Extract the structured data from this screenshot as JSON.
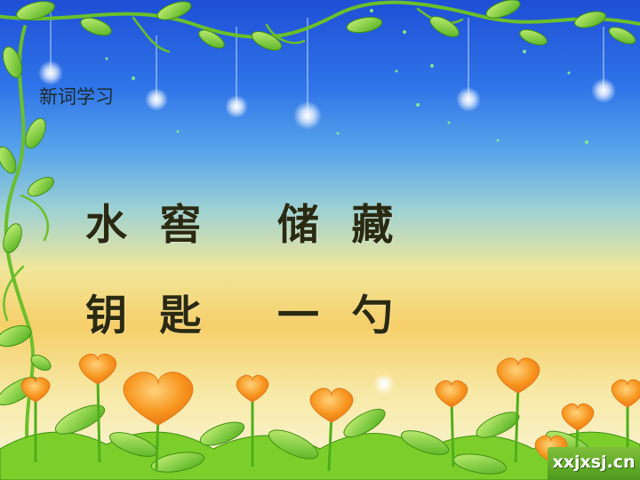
{
  "section_title": "新词学习",
  "words": {
    "row1": [
      "水 窖",
      "储 藏"
    ],
    "row2": [
      "钥 匙",
      "一 勺"
    ]
  },
  "watermark": "xxjxsj.cn",
  "colors": {
    "sky_top": "#1f4fd6",
    "sky_bottom": "#fbf6dc",
    "text": "#2a2a12",
    "leaf": "#7ccf2a",
    "heart": "#f7941d"
  }
}
